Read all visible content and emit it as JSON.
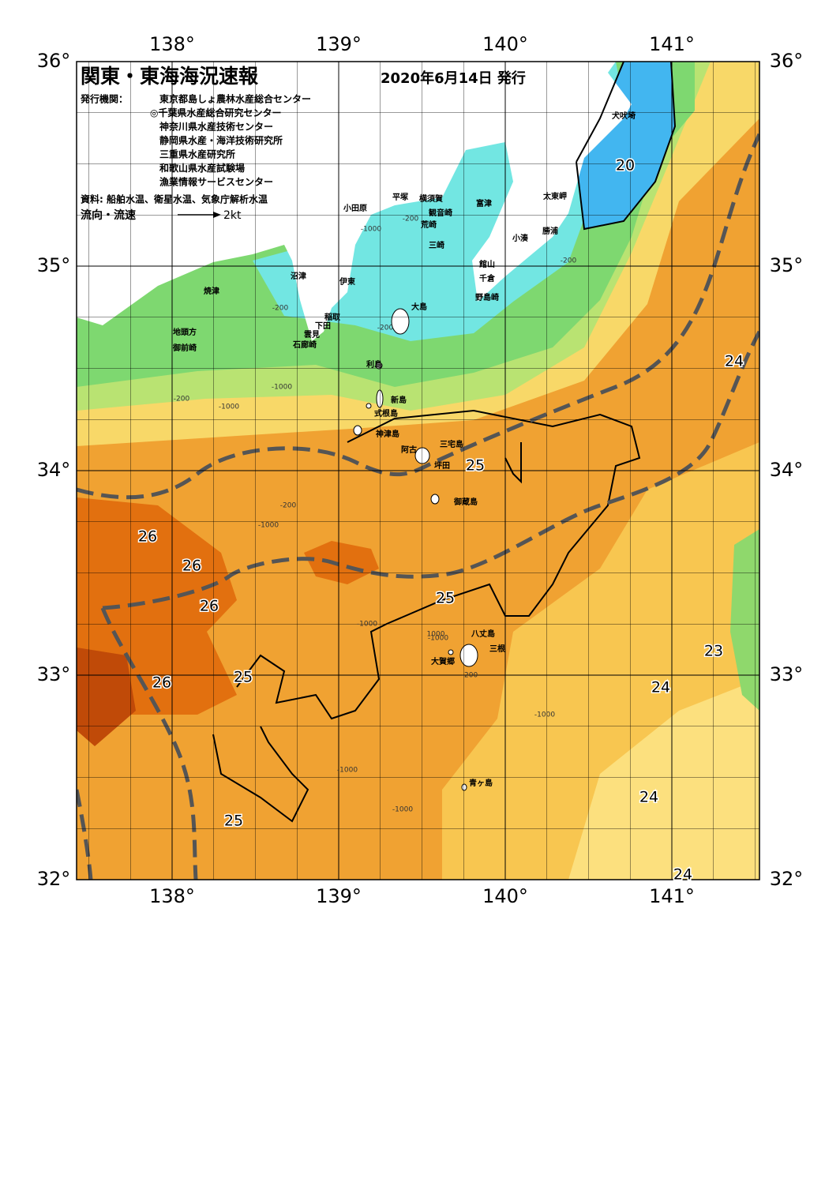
{
  "header": {
    "title": "関東・東海海況速報",
    "date": "2020年6月14日 発行",
    "issuer_label": "発行機関：",
    "issuers": [
      "東京都島しょ農林水産総合センター",
      "◎千葉県水産総合研究センター",
      "神奈川県水産技術センター",
      "静岡県水産・海洋技術研究所",
      "三重県水産研究所",
      "和歌山県水産試験場",
      "漁業情報サービスセンター"
    ],
    "source": "資料: 船舶水温、衛星水温、気象庁解析水温",
    "flow_label": "流向・流速",
    "flow_scale": "2kt"
  },
  "axes": {
    "lon": [
      {
        "value": 138,
        "label": "138°"
      },
      {
        "value": 139,
        "label": "139°"
      },
      {
        "value": 140,
        "label": "140°"
      },
      {
        "value": 141,
        "label": "141°"
      }
    ],
    "lat": [
      {
        "value": 36,
        "label": "36°"
      },
      {
        "value": 35,
        "label": "35°"
      },
      {
        "value": 34,
        "label": "34°"
      },
      {
        "value": 33,
        "label": "33°"
      },
      {
        "value": 32,
        "label": "32°"
      }
    ]
  },
  "places": [
    "犬吠埼",
    "太東岬",
    "富津",
    "平塚",
    "横須賀",
    "観音崎",
    "荒崎",
    "小田原",
    "勝浦",
    "小湊",
    "三崎",
    "館山",
    "千倉",
    "沼津",
    "伊東",
    "焼津",
    "野島崎",
    "大島",
    "稲取",
    "下田",
    "雲見",
    "地頭方",
    "石廊崎",
    "御前崎",
    "利島",
    "新島",
    "式根島",
    "神津島",
    "三宅島",
    "阿古",
    "坪田",
    "御蔵島",
    "八丈島",
    "三根",
    "大賀郷",
    "青ヶ島"
  ],
  "temperature_labels": [
    "20",
    "24",
    "25",
    "26",
    "26",
    "26",
    "25",
    "23",
    "26",
    "25",
    "24",
    "24",
    "25",
    "24"
  ],
  "depth_labels": [
    "-200",
    "-1000",
    "-200",
    "-1000",
    "-200",
    "-200",
    "-1000",
    "-200",
    "-1000",
    "-1000",
    "-1000",
    "1000",
    "-200",
    "-1000",
    "-1000",
    "-1000",
    "-200"
  ]
}
